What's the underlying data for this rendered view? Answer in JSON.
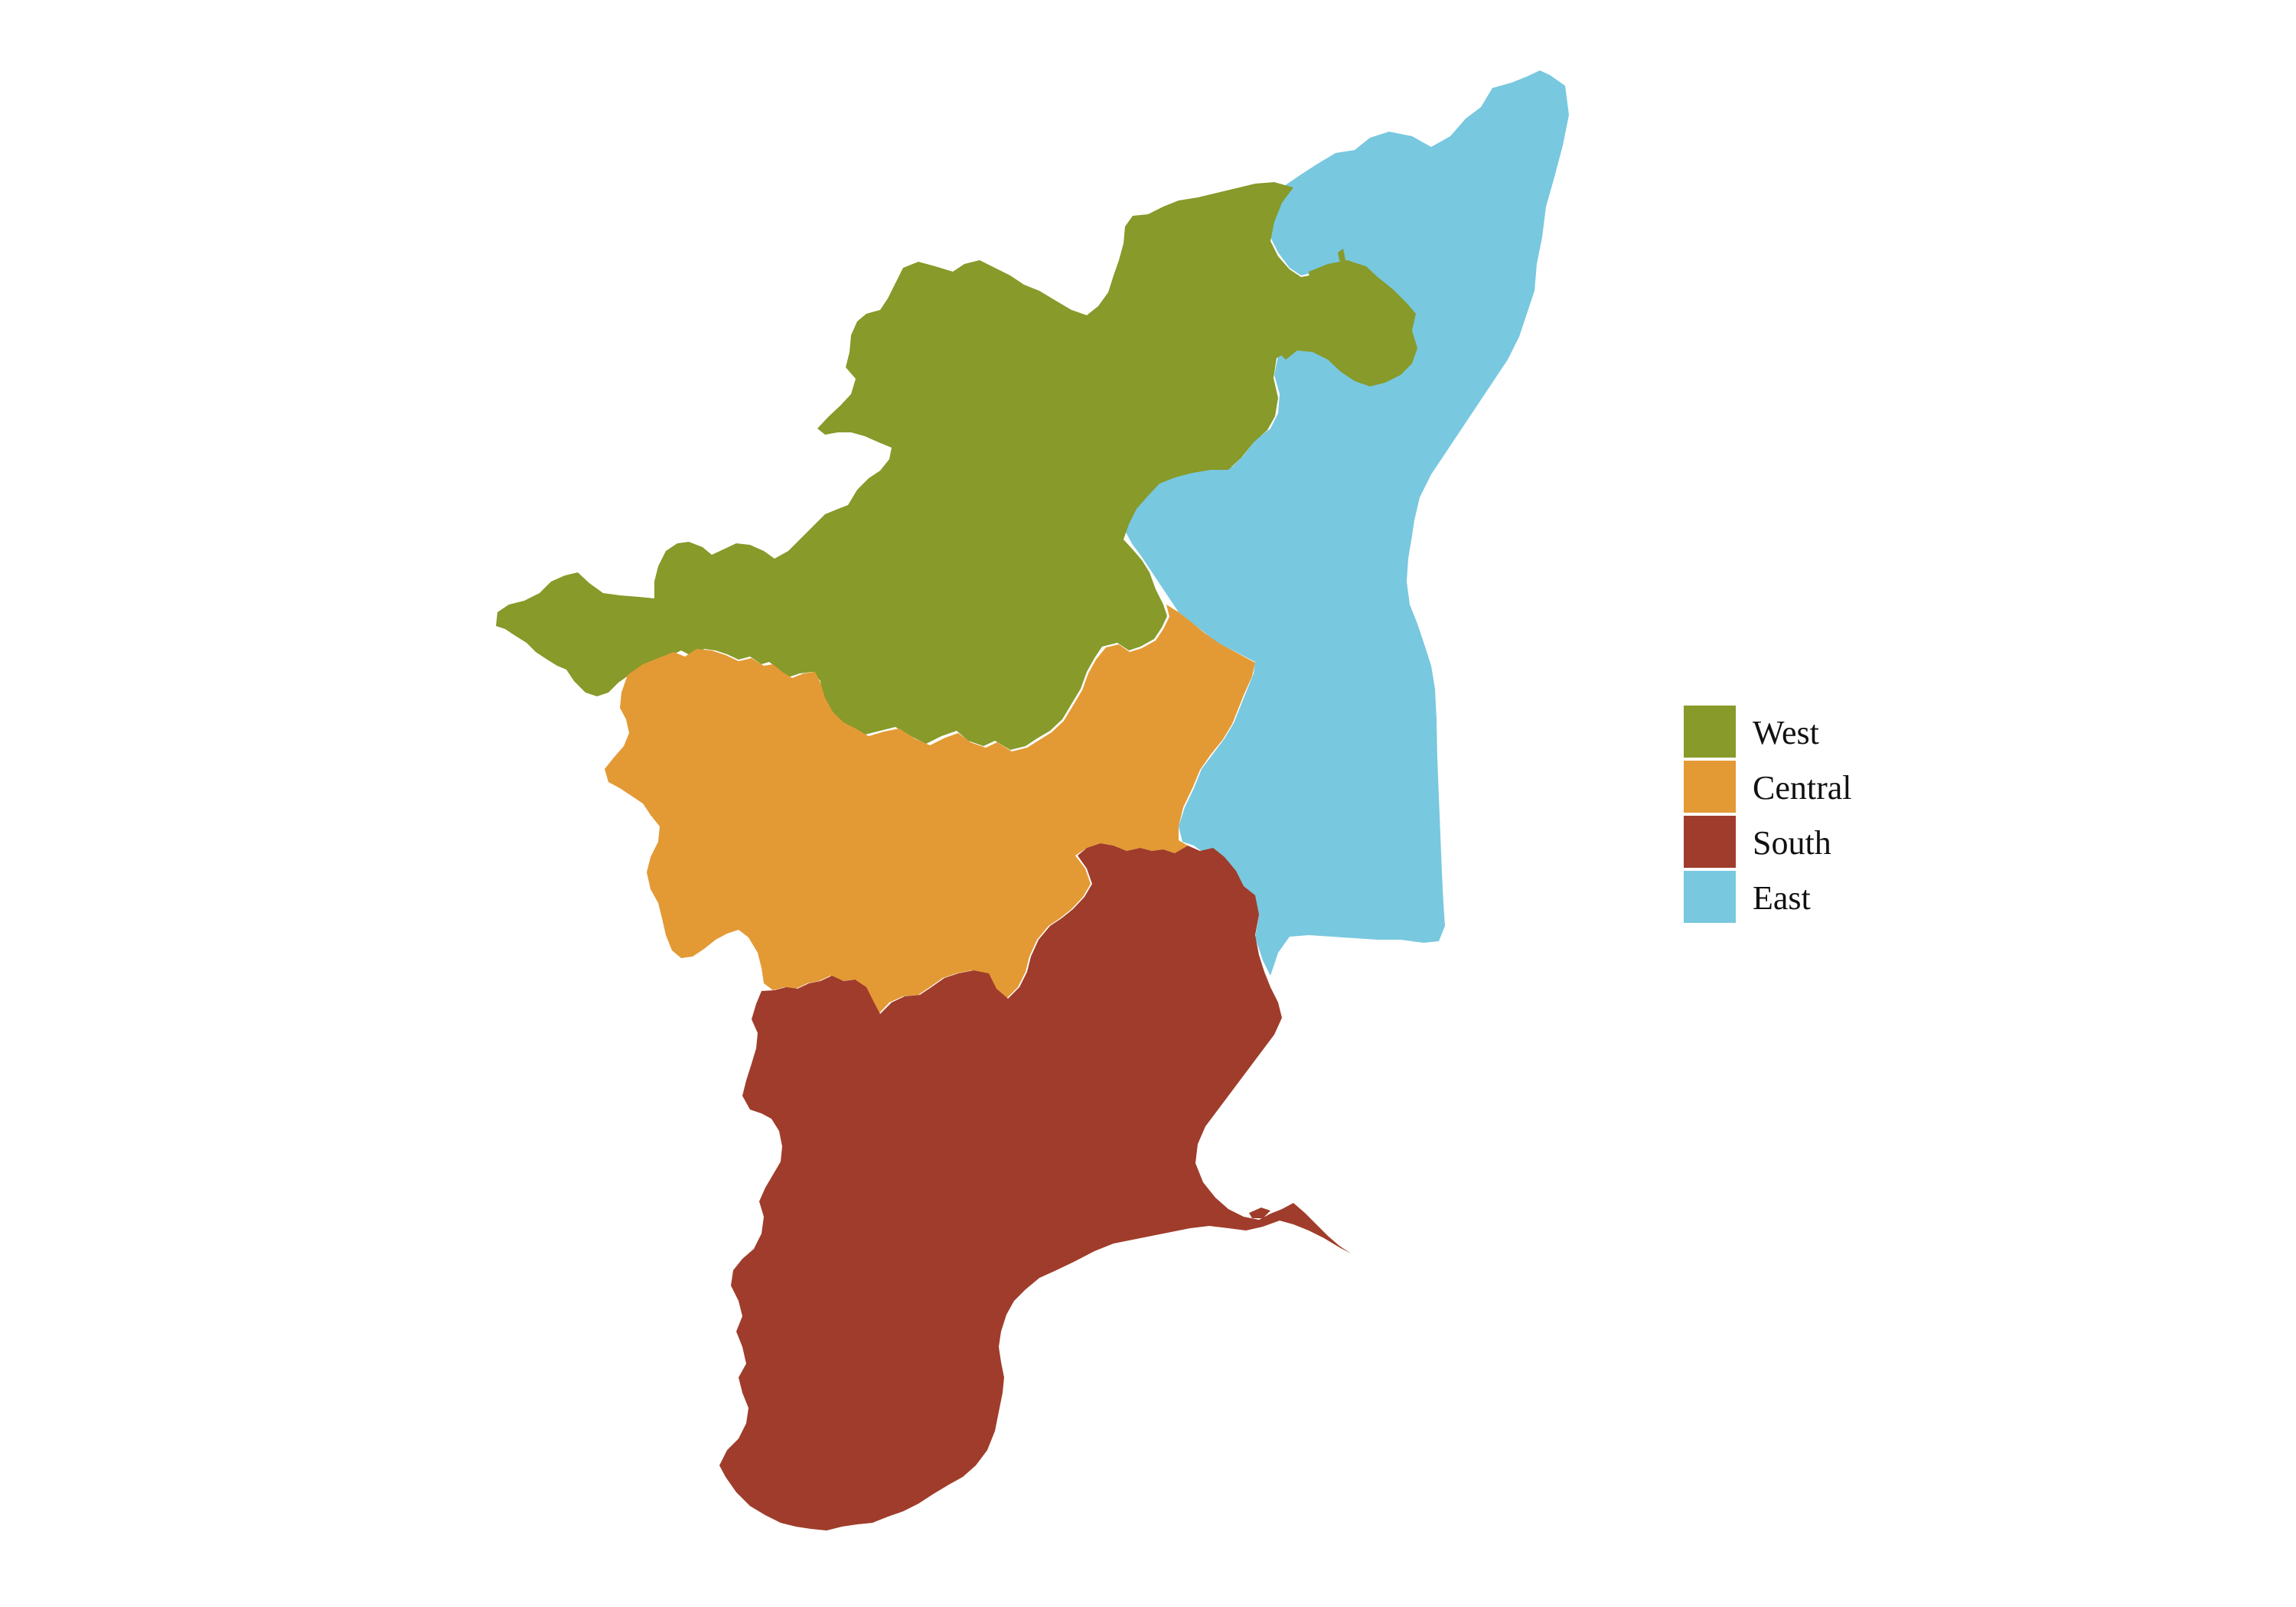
{
  "map": {
    "regions": [
      {
        "id": "west",
        "name": "West",
        "color": "#879A2A"
      },
      {
        "id": "central",
        "name": "Central",
        "color": "#E39A35"
      },
      {
        "id": "south",
        "name": "South",
        "color": "#A03C2B"
      },
      {
        "id": "east",
        "name": "East",
        "color": "#78C8DF"
      }
    ]
  },
  "legend": {
    "entries": [
      {
        "label": "West",
        "color": "#879A2A"
      },
      {
        "label": "Central",
        "color": "#E39A35"
      },
      {
        "label": "South",
        "color": "#A03C2B"
      },
      {
        "label": "East",
        "color": "#78C8DF"
      }
    ]
  }
}
